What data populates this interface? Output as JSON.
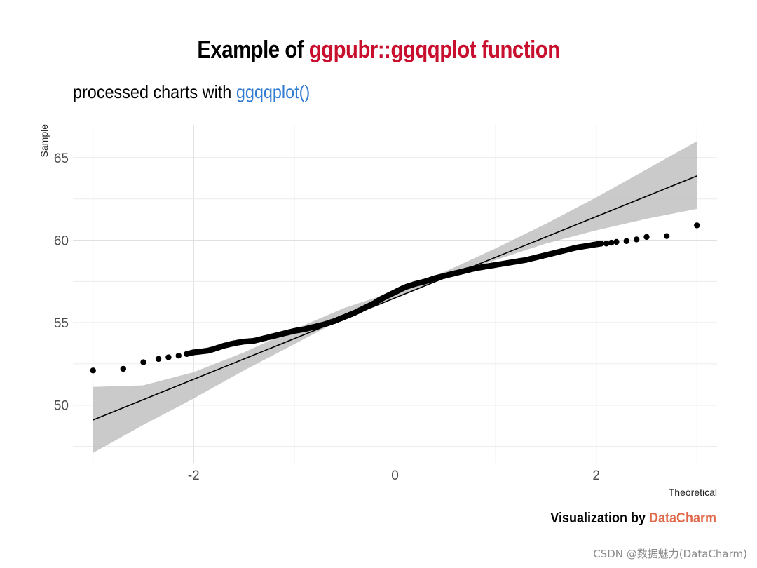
{
  "title": {
    "prefix": "Example of",
    "highlight": "ggpubr::ggqqplot function",
    "prefix_color": "#000000",
    "highlight_color": "#c8102e"
  },
  "subtitle": {
    "prefix": "processed charts with",
    "highlight": "ggqqplot()",
    "highlight_color": "#2e7bd1"
  },
  "caption": {
    "prefix": "Visualization by",
    "highlight": "DataCharm",
    "highlight_color": "#e0694a"
  },
  "footer": "CSDN @数据魅力(DataCharm)",
  "chart_data": {
    "type": "scatter",
    "xlabel": "Theoretical",
    "ylabel": "Sample",
    "xlim": [
      -3.2,
      3.2
    ],
    "ylim": [
      46.5,
      67
    ],
    "x_ticks": [
      -2,
      0,
      2
    ],
    "x_tick_labels": [
      "-2",
      "0",
      "2"
    ],
    "y_ticks": [
      50,
      55,
      60,
      65
    ],
    "y_tick_labels": [
      "50",
      "55",
      "60",
      "65"
    ],
    "grid": true,
    "point_color": "#000000",
    "band_color": "#bdbdbd",
    "reference_line": {
      "x": [
        -3,
        3
      ],
      "y": [
        49.1,
        63.9
      ]
    },
    "confidence_band": {
      "x": [
        -3,
        -2.5,
        -2,
        -1.5,
        -1,
        -0.5,
        0,
        0.5,
        1,
        1.5,
        2,
        2.5,
        3
      ],
      "lower": [
        47.1,
        48.8,
        50.4,
        52.1,
        53.7,
        55.3,
        56.5,
        57.7,
        58.8,
        59.8,
        60.6,
        61.3,
        61.9
      ],
      "upper": [
        51.1,
        51.2,
        52.0,
        53.2,
        54.6,
        55.9,
        56.9,
        58.1,
        59.5,
        61.0,
        62.6,
        64.3,
        66.0
      ]
    },
    "series": [
      {
        "x": [
          -3.0,
          -2.7,
          -2.5,
          -2.35,
          -2.25,
          -2.15,
          -2.07,
          -2.0,
          -1.93,
          -1.86,
          -1.8,
          -1.7,
          -1.6,
          -1.5,
          -1.4,
          -1.3,
          -1.2,
          -1.1,
          -1.0,
          -0.9,
          -0.8,
          -0.7,
          -0.6,
          -0.5,
          -0.4,
          -0.3,
          -0.2,
          -0.15,
          -0.1,
          -0.05,
          0.0,
          0.05,
          0.1,
          0.2,
          0.3,
          0.4,
          0.5,
          0.6,
          0.7,
          0.8,
          0.9,
          1.0,
          1.1,
          1.2,
          1.3,
          1.4,
          1.5,
          1.6,
          1.7,
          1.8,
          1.9,
          2.0,
          2.05,
          2.1,
          2.15,
          2.2,
          2.3,
          2.4,
          2.5,
          2.7,
          3.0
        ],
        "y": [
          52.1,
          52.2,
          52.6,
          52.8,
          52.9,
          53.0,
          53.1,
          53.2,
          53.25,
          53.3,
          53.4,
          53.6,
          53.75,
          53.85,
          53.9,
          54.05,
          54.2,
          54.35,
          54.5,
          54.6,
          54.75,
          54.9,
          55.1,
          55.35,
          55.6,
          55.9,
          56.2,
          56.4,
          56.55,
          56.7,
          56.85,
          57.0,
          57.15,
          57.35,
          57.5,
          57.7,
          57.85,
          58.0,
          58.15,
          58.3,
          58.4,
          58.5,
          58.6,
          58.7,
          58.8,
          58.95,
          59.1,
          59.25,
          59.4,
          59.55,
          59.65,
          59.75,
          59.8,
          59.8,
          59.85,
          59.9,
          59.95,
          60.05,
          60.2,
          60.25,
          60.9
        ]
      }
    ]
  }
}
